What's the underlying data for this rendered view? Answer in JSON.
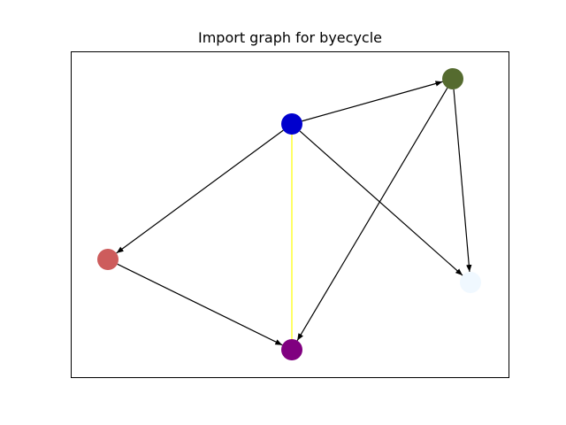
{
  "title": "Import graph for byecycle",
  "graph": {
    "nodes": [
      {
        "id": "n-top-center",
        "color": "#0000cd"
      },
      {
        "id": "n-top-right",
        "color": "#556b2f"
      },
      {
        "id": "n-left",
        "color": "#cd5c5c"
      },
      {
        "id": "n-bottom-center",
        "color": "#800080"
      },
      {
        "id": "n-right",
        "color": "#f0f8ff"
      }
    ],
    "edges": [
      {
        "from": "n-top-center",
        "to": "n-top-right",
        "directed": true,
        "color": "#000000"
      },
      {
        "from": "n-top-center",
        "to": "n-left",
        "directed": true,
        "color": "#000000"
      },
      {
        "from": "n-top-center",
        "to": "n-right",
        "directed": true,
        "color": "#000000"
      },
      {
        "from": "n-top-center",
        "to": "n-bottom-center",
        "directed": false,
        "color": "#ffff00"
      },
      {
        "from": "n-top-right",
        "to": "n-bottom-center",
        "directed": true,
        "color": "#000000"
      },
      {
        "from": "n-top-right",
        "to": "n-right",
        "directed": true,
        "color": "#000000"
      },
      {
        "from": "n-left",
        "to": "n-bottom-center",
        "directed": true,
        "color": "#000000"
      }
    ]
  }
}
